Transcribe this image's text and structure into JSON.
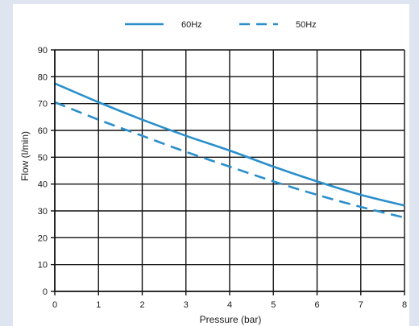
{
  "chart_data": {
    "type": "line",
    "xlabel": "Pressure (bar)",
    "ylabel": "Flow (l/min)",
    "xlim": [
      0,
      8
    ],
    "ylim": [
      0,
      90
    ],
    "x_ticks": [
      "0",
      "1",
      "2",
      "3",
      "4",
      "5",
      "6",
      "7",
      "8"
    ],
    "y_ticks": [
      "0",
      "10",
      "20",
      "30",
      "40",
      "50",
      "60",
      "70",
      "80",
      "90"
    ],
    "grid": true,
    "legend_position": "top",
    "series": [
      {
        "name": "60Hz",
        "style": "solid",
        "color": "#2a8fcb",
        "x": [
          0,
          1,
          2,
          3,
          4,
          5,
          6,
          7,
          8
        ],
        "y": [
          77.5,
          70.5,
          64,
          58,
          52.5,
          46.5,
          41,
          36,
          32
        ]
      },
      {
        "name": "50Hz",
        "style": "dashed",
        "color": "#2a8fcb",
        "x": [
          0,
          1,
          2,
          3,
          4,
          5,
          6,
          7,
          8
        ],
        "y": [
          70.5,
          64,
          58,
          52,
          46.5,
          41,
          36,
          31.5,
          27.5
        ]
      }
    ]
  }
}
